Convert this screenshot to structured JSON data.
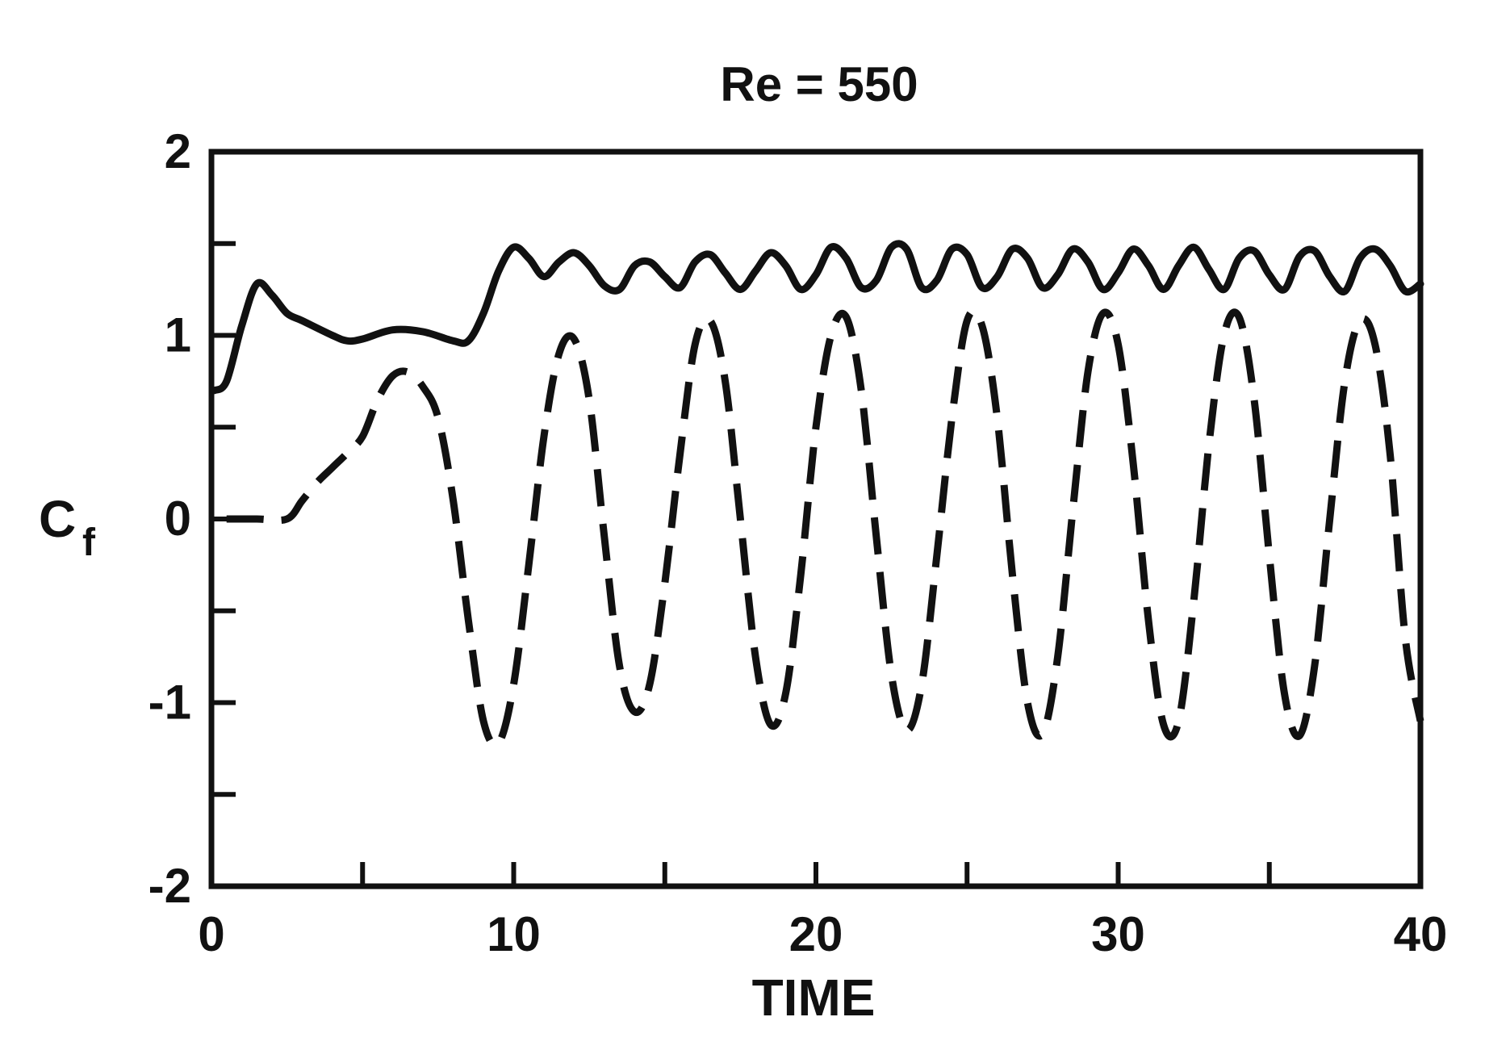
{
  "chart_data": {
    "type": "line",
    "title": "Re = 550",
    "xlabel": "TIME",
    "ylabel": "C",
    "ylabel_subscript": "f",
    "xlim": [
      0,
      40
    ],
    "ylim": [
      -2,
      2
    ],
    "x_ticks": [
      0,
      10,
      20,
      30,
      40
    ],
    "x_minor_ticks": [
      5,
      15,
      25,
      35
    ],
    "y_ticks": [
      -2,
      -1,
      0,
      1,
      2
    ],
    "y_minor_ticks": [
      -1.5,
      -0.5,
      0.5,
      1.5
    ],
    "x_tick_labels": [
      "0",
      "10",
      "20",
      "30",
      "40"
    ],
    "y_tick_labels": [
      "-2",
      "-1",
      "0",
      "1",
      "2"
    ],
    "grid": false,
    "series": [
      {
        "style": "solid",
        "color": "#111111",
        "x": [
          0.1,
          0.5,
          1.0,
          1.5,
          2.0,
          2.5,
          3.0,
          4.0,
          4.5,
          5.0,
          6.0,
          7.0,
          8.0,
          8.5,
          9.0,
          9.5,
          10.0,
          10.5,
          11.0,
          11.5,
          12.0,
          12.5,
          13.0,
          13.5,
          14.0,
          14.5,
          15.0,
          15.5,
          16.0,
          16.5,
          17.0,
          17.5,
          18.0,
          18.5,
          19.0,
          19.5,
          20.0,
          20.5,
          21.0,
          21.5,
          22.0,
          22.5,
          23.0,
          23.5,
          24.0,
          24.5,
          25.0,
          25.5,
          26.0,
          26.5,
          27.0,
          27.5,
          28.0,
          28.5,
          29.0,
          29.5,
          30.0,
          30.5,
          31.0,
          31.5,
          32.0,
          32.5,
          33.0,
          33.5,
          34.0,
          34.5,
          35.0,
          35.5,
          36.0,
          36.5,
          37.0,
          37.5,
          38.0,
          38.5,
          39.0,
          39.5,
          40.0
        ],
        "y": [
          0.7,
          0.75,
          1.05,
          1.28,
          1.22,
          1.12,
          1.08,
          1.0,
          0.97,
          0.98,
          1.03,
          1.02,
          0.97,
          0.97,
          1.12,
          1.35,
          1.48,
          1.42,
          1.32,
          1.4,
          1.45,
          1.38,
          1.27,
          1.25,
          1.38,
          1.4,
          1.32,
          1.26,
          1.4,
          1.44,
          1.34,
          1.25,
          1.35,
          1.45,
          1.38,
          1.25,
          1.33,
          1.48,
          1.42,
          1.26,
          1.3,
          1.48,
          1.47,
          1.26,
          1.3,
          1.47,
          1.44,
          1.26,
          1.32,
          1.47,
          1.42,
          1.26,
          1.33,
          1.47,
          1.4,
          1.25,
          1.34,
          1.47,
          1.38,
          1.25,
          1.38,
          1.48,
          1.36,
          1.25,
          1.42,
          1.46,
          1.33,
          1.25,
          1.43,
          1.46,
          1.32,
          1.24,
          1.42,
          1.47,
          1.38,
          1.24,
          1.28
        ]
      },
      {
        "style": "dashed",
        "color": "#111111",
        "x": [
          0.5,
          1.5,
          2.5,
          3.0,
          3.5,
          4.0,
          4.5,
          5.0,
          5.5,
          6.0,
          6.5,
          7.0,
          7.5,
          8.0,
          8.5,
          9.0,
          9.5,
          10.0,
          10.5,
          11.0,
          11.5,
          12.0,
          12.5,
          13.0,
          13.5,
          14.0,
          14.5,
          15.0,
          15.5,
          16.0,
          16.5,
          17.0,
          17.5,
          18.0,
          18.5,
          19.0,
          19.5,
          20.0,
          20.5,
          21.0,
          21.5,
          22.0,
          22.5,
          23.0,
          23.5,
          24.0,
          24.5,
          25.0,
          25.5,
          26.0,
          26.5,
          27.0,
          27.5,
          28.0,
          28.5,
          29.0,
          29.5,
          30.0,
          30.5,
          31.0,
          31.5,
          32.0,
          32.5,
          33.0,
          33.5,
          34.0,
          34.5,
          35.0,
          35.5,
          36.0,
          36.5,
          37.0,
          37.5,
          38.0,
          38.5,
          39.0,
          39.5,
          40.0
        ],
        "y": [
          0.0,
          0.0,
          0.0,
          0.1,
          0.2,
          0.28,
          0.36,
          0.45,
          0.65,
          0.78,
          0.8,
          0.72,
          0.55,
          0.1,
          -0.55,
          -1.1,
          -1.22,
          -0.9,
          -0.25,
          0.45,
          0.9,
          0.98,
          0.65,
          -0.1,
          -0.8,
          -1.05,
          -0.9,
          -0.35,
          0.35,
          0.95,
          1.08,
          0.75,
          0.0,
          -0.75,
          -1.12,
          -0.95,
          -0.3,
          0.5,
          1.0,
          1.1,
          0.7,
          -0.1,
          -0.85,
          -1.15,
          -0.9,
          -0.2,
          0.55,
          1.08,
          1.05,
          0.55,
          -0.3,
          -1.0,
          -1.17,
          -0.75,
          0.05,
          0.8,
          1.12,
          0.95,
          0.3,
          -0.55,
          -1.12,
          -1.1,
          -0.45,
          0.4,
          1.0,
          1.1,
          0.65,
          -0.2,
          -0.95,
          -1.18,
          -0.8,
          0.0,
          0.75,
          1.08,
          0.95,
          0.35,
          -0.65,
          -1.1
        ]
      }
    ]
  }
}
